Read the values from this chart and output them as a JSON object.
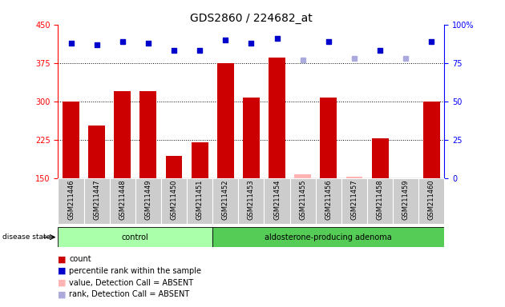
{
  "title": "GDS2860 / 224682_at",
  "samples": [
    "GSM211446",
    "GSM211447",
    "GSM211448",
    "GSM211449",
    "GSM211450",
    "GSM211451",
    "GSM211452",
    "GSM211453",
    "GSM211454",
    "GSM211455",
    "GSM211456",
    "GSM211457",
    "GSM211458",
    "GSM211459",
    "GSM211460"
  ],
  "counts": [
    300,
    253,
    320,
    320,
    193,
    220,
    375,
    308,
    385,
    157,
    308,
    152,
    228,
    150,
    300
  ],
  "percentile_ranks": [
    88,
    87,
    89,
    88,
    83,
    83,
    90,
    88,
    91,
    77,
    89,
    78,
    83,
    78,
    89
  ],
  "absent_mask": [
    false,
    false,
    false,
    false,
    false,
    false,
    false,
    false,
    false,
    true,
    false,
    true,
    false,
    true,
    false
  ],
  "control_count": 6,
  "adenoma_count": 9,
  "ylim_left": [
    150,
    450
  ],
  "ylim_right": [
    0,
    100
  ],
  "yticks_left": [
    150,
    225,
    300,
    375,
    450
  ],
  "yticks_right": [
    0,
    25,
    50,
    75,
    100
  ],
  "bar_color": "#cc0000",
  "bar_color_absent": "#ffb3b3",
  "rank_color": "#0000cc",
  "rank_color_absent": "#aaaadd",
  "label_bg_color": "#cccccc",
  "control_bg": "#aaffaa",
  "adenoma_bg": "#55cc55",
  "title_fontsize": 10,
  "tick_fontsize": 7,
  "label_fontsize": 6
}
